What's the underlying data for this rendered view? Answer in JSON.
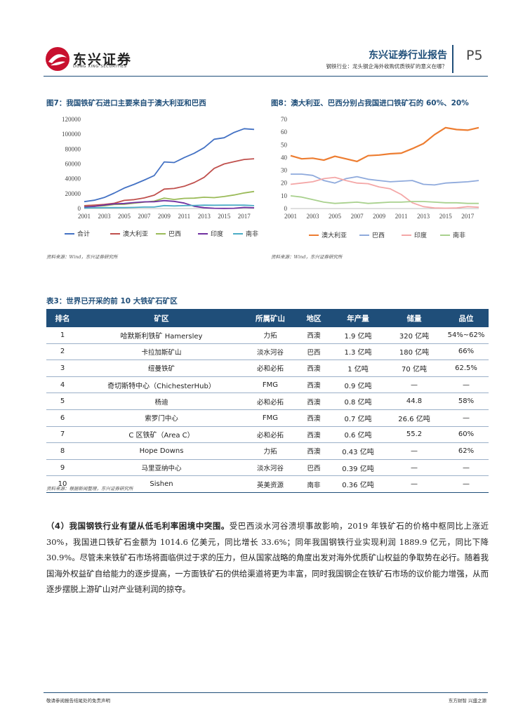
{
  "header": {
    "company_cn": "东兴证券",
    "company_en": "DONG XING SECURITIES",
    "report_title": "东兴证券行业报告",
    "subtitle": "钢铁行业：龙头钢企海外收购优质铁矿的意义在哪？",
    "page": "P5",
    "logo_color": "#c8102e"
  },
  "figure7": {
    "title": "图7：我国铁矿石进口主要来自于澳大利亚和巴西",
    "source": "资料来源：Wind，东兴证券研究所"
  },
  "figure8": {
    "title": "图8：澳大利亚、巴西分别占我国进口铁矿石的 60%、20%",
    "source": "资料来源：Wind，东兴证券研究所"
  },
  "chart_data": [
    {
      "type": "line",
      "title": "图7：我国铁矿石进口主要来自于澳大利亚和巴西",
      "x": [
        2001,
        2002,
        2003,
        2004,
        2005,
        2006,
        2007,
        2008,
        2009,
        2010,
        2011,
        2012,
        2013,
        2014,
        2015,
        2016,
        2017,
        2018
      ],
      "x_ticks": [
        "2001",
        "2003",
        "2005",
        "2007",
        "2009",
        "2011",
        "2013",
        "2015",
        "2017"
      ],
      "ylim": [
        0,
        120000
      ],
      "y_ticks": [
        "0",
        "20000",
        "40000",
        "60000",
        "80000",
        "100000",
        "120000"
      ],
      "legend": "bottom",
      "series": [
        {
          "name": "合计",
          "color": "#4472c4",
          "values": [
            9230,
            11150,
            14810,
            20810,
            27520,
            32630,
            38310,
            44360,
            62778,
            61864,
            68608,
            74355,
            81941,
            93269,
            95284,
            102412,
            107474,
            106447
          ]
        },
        {
          "name": "澳大利亚",
          "color": "#c0504d",
          "values": [
            3900,
            4600,
            5600,
            7100,
            11000,
            12000,
            14300,
            18000,
            26200,
            27000,
            30000,
            35000,
            42000,
            54000,
            60000,
            63000,
            66000,
            67000
          ]
        },
        {
          "name": "巴西",
          "color": "#9bbb59",
          "values": [
            2500,
            2900,
            3700,
            5500,
            5700,
            7200,
            8600,
            9900,
            14100,
            12200,
            13700,
            14000,
            15200,
            14600,
            16200,
            18200,
            21000,
            23000
          ]
        },
        {
          "name": "印度",
          "color": "#7030a0",
          "values": [
            2000,
            2800,
            4700,
            6200,
            6800,
            8000,
            9000,
            9200,
            10700,
            9600,
            7400,
            3000,
            1100,
            400,
            200,
            400,
            1500,
            1000
          ]
        },
        {
          "name": "南非",
          "color": "#4bacc6",
          "values": [
            700,
            900,
            1100,
            1200,
            1300,
            1500,
            2000,
            2000,
            4000,
            3500,
            4000,
            4200,
            4500,
            4400,
            4500,
            4600,
            4500,
            3900
          ]
        }
      ]
    },
    {
      "type": "line",
      "title": "图8：澳大利亚、巴西分别占我国进口铁矿石的 60%、20%",
      "x": [
        2001,
        2002,
        2003,
        2004,
        2005,
        2006,
        2007,
        2008,
        2009,
        2010,
        2011,
        2012,
        2013,
        2014,
        2015,
        2016,
        2017,
        2018
      ],
      "x_ticks": [
        "2001",
        "2003",
        "2005",
        "2007",
        "2009",
        "2011",
        "2013",
        "2015",
        "2017"
      ],
      "ylim": [
        0,
        70
      ],
      "y_ticks": [
        "0",
        "10",
        "20",
        "30",
        "40",
        "50",
        "60",
        "70"
      ],
      "legend": "bottom",
      "series": [
        {
          "name": "澳大利亚",
          "color": "#ed7d31",
          "values": [
            41.5,
            39,
            39.5,
            38,
            41,
            39,
            37,
            41.5,
            42,
            43,
            43.5,
            47,
            51,
            58,
            63.5,
            62,
            61.5,
            63.5
          ]
        },
        {
          "name": "巴西",
          "color": "#8faadc",
          "values": [
            27,
            27,
            26,
            22,
            20,
            23.5,
            25,
            23,
            22,
            21,
            21.5,
            22,
            19,
            18.5,
            20,
            20.5,
            21,
            22
          ]
        },
        {
          "name": "印度",
          "color": "#f4a7a7",
          "values": [
            19,
            20,
            21,
            23.5,
            24.5,
            22,
            20,
            19.5,
            17,
            15.5,
            11,
            4.5,
            1.5,
            0.5,
            0.3,
            0.5,
            1.5,
            1
          ]
        },
        {
          "name": "南非",
          "color": "#a9d18e",
          "values": [
            10,
            9,
            7,
            5,
            4,
            4.5,
            5,
            4,
            4.5,
            5,
            5,
            5.5,
            5.5,
            5,
            4.5,
            4.5,
            4,
            4
          ]
        }
      ]
    }
  ],
  "table3": {
    "title": "表3：世界已开采的前 10 大铁矿石矿区",
    "headers": [
      "排名",
      "矿区",
      "所属矿山",
      "地区",
      "年产量",
      "储量",
      "品位"
    ],
    "rows": [
      [
        "1",
        "哈默斯利铁矿 Hamersley",
        "力拓",
        "西澳",
        "1.9 亿吨",
        "320 亿吨",
        "54%~62%"
      ],
      [
        "2",
        "卡拉加斯矿山",
        "淡水河谷",
        "巴西",
        "1.3 亿吨",
        "180 亿吨",
        "66%"
      ],
      [
        "3",
        "纽曼铁矿",
        "必和必拓",
        "西澳",
        "1 亿吨",
        "70 亿吨",
        "62.5%"
      ],
      [
        "4",
        "奇切斯特中心（ChichesterHub）",
        "FMG",
        "西澳",
        "0.9 亿吨",
        "—",
        "—"
      ],
      [
        "5",
        "杨迪",
        "必和必拓",
        "西澳",
        "0.8 亿吨",
        "44.8",
        "58%"
      ],
      [
        "6",
        "索罗门中心",
        "FMG",
        "西澳",
        "0.7 亿吨",
        "26.6 亿吨",
        "—"
      ],
      [
        "7",
        "C 区铁矿（Area C）",
        "必和必拓",
        "西澳",
        "0.6 亿吨",
        "55.2",
        "60%"
      ],
      [
        "8",
        "Hope Downs",
        "力拓",
        "西澳",
        "0.43 亿吨",
        "—",
        "62%"
      ],
      [
        "9",
        "马里亚纳中心",
        "淡水河谷",
        "巴西",
        "0.39 亿吨",
        "—",
        "—"
      ],
      [
        "10",
        "Sishen",
        "英美资源",
        "南非",
        "0.36 亿吨",
        "—",
        "—"
      ]
    ],
    "source": "资料来源：根据新闻整理，东兴证券研究所"
  },
  "paragraph": {
    "lead": "（4）我国钢铁行业有望从低毛利率困境中突围。",
    "body": "受巴西淡水河谷溃坝事故影响，2019 年铁矿石的价格中枢同比上涨近 30%，我国进口铁矿石金额为 1014.6 亿美元，同比增长 33.6%；同年我国钢铁行业实现利润 1889.9 亿元，同比下降 30.9%。尽管未来铁矿石市场将面临供过于求的压力，但从国家战略的角度出发对海外优质矿山权益的争取势在必行。随着我国海外权益矿自给能力的逐步提高，一方面铁矿石的供给渠道将更为丰富，同时我国钢企在铁矿石市场的议价能力增强，从而逐步摆脱上游矿山对产业链利润的掠夺。"
  },
  "footer": {
    "left": "敬请参阅报告结尾处的免责声明",
    "right": "东方财智  兴盛之源"
  }
}
